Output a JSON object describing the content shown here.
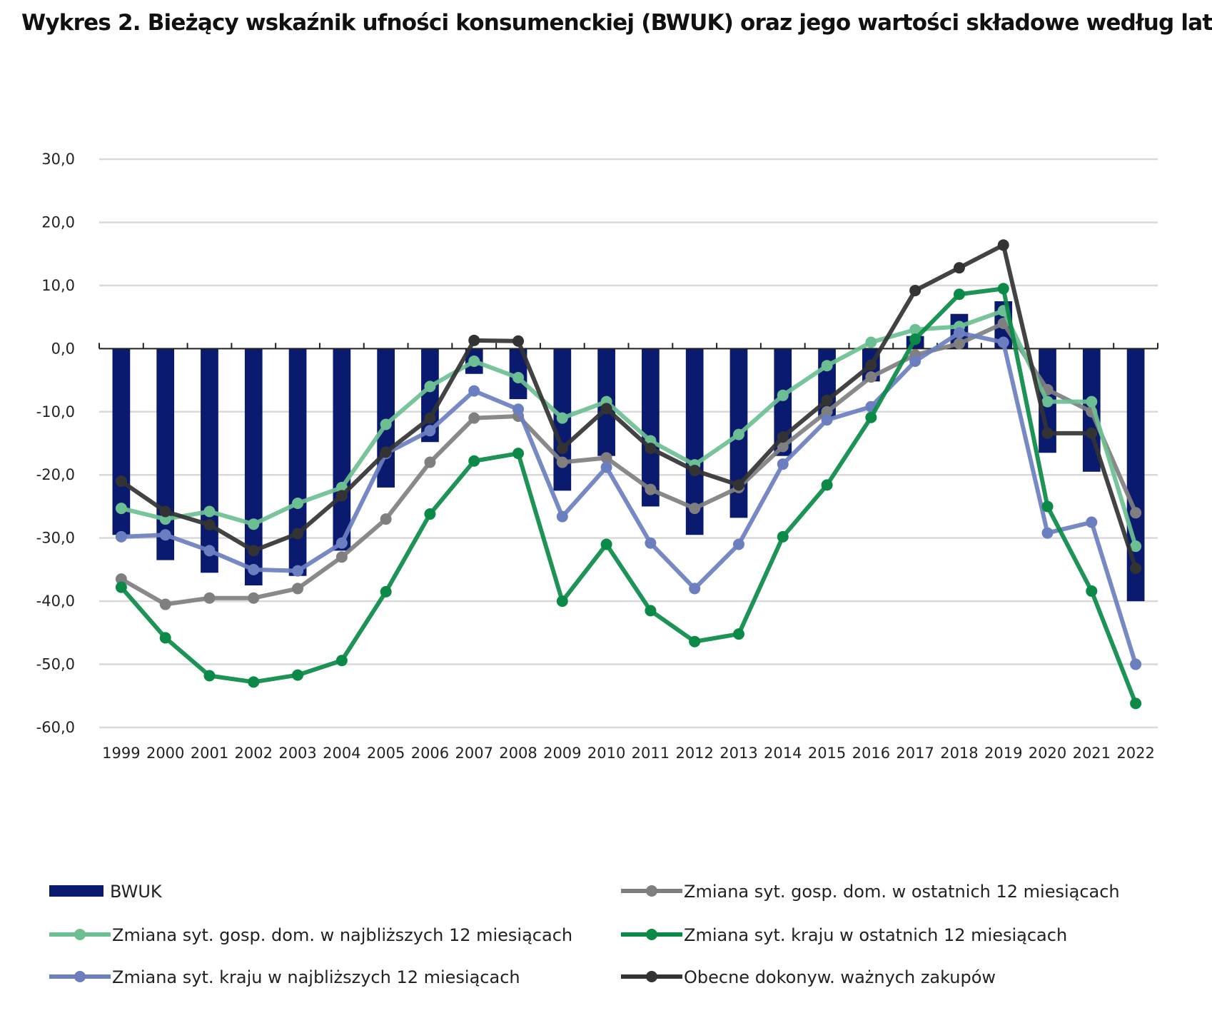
{
  "chart_data": {
    "type": "bar+line",
    "title": "Wykres 2. Bieżący wskaźnik ufności konsumenckiej (BWUK) oraz jego wartości składowe według lat",
    "categories": [
      "1999",
      "2000",
      "2001",
      "2002",
      "2003",
      "2004",
      "2005",
      "2006",
      "2007",
      "2008",
      "2009",
      "2010",
      "2011",
      "2012",
      "2013",
      "2014",
      "2015",
      "2016",
      "2017",
      "2018",
      "2019",
      "2020",
      "2021",
      "2022"
    ],
    "ylim": [
      -60,
      30
    ],
    "yticks": [
      "30,0",
      "20,0",
      "10,0",
      "0,0",
      "-10,0",
      "-20,0",
      "-30,0",
      "-40,0",
      "-50,0",
      "-60,0"
    ],
    "ytick_values": [
      30,
      20,
      10,
      0,
      -10,
      -20,
      -30,
      -40,
      -50,
      -60
    ],
    "grid": true,
    "legend_position": "bottom",
    "bars": {
      "name": "BWUK",
      "color": "#0a1a6e",
      "values": [
        -29.5,
        -33.5,
        -35.5,
        -37.5,
        -36,
        -32,
        -22,
        -14.8,
        -4,
        -8,
        -22.5,
        -17,
        -25,
        -29.5,
        -26.8,
        -17,
        -11,
        -5.2,
        2,
        5.5,
        7.5,
        -16.5,
        -19.5,
        -40
      ]
    },
    "series": [
      {
        "name": "Zmiana syt. gosp. dom. w ostatnich 12 miesiącach",
        "color": "#7f7f7f",
        "values": [
          -36.5,
          -40.5,
          -39.5,
          -39.5,
          -38,
          -33,
          -27,
          -18,
          -11,
          -10.7,
          -18,
          -17.3,
          -22.3,
          -25.3,
          -22,
          -15.5,
          -10,
          -4.5,
          -1,
          0.8,
          4,
          -6.5,
          -10,
          -26
        ]
      },
      {
        "name": "Zmiana syt. gosp. dom. w najbliższych 12 miesiącach",
        "color": "#6cbf93",
        "values": [
          -25.3,
          -27,
          -25.8,
          -27.8,
          -24.5,
          -22,
          -12,
          -6,
          -2,
          -4.6,
          -11,
          -8.4,
          -14.6,
          -18.4,
          -13.6,
          -7.4,
          -2.7,
          1,
          3,
          3.5,
          6,
          -8.4,
          -8.4,
          -31.3
        ]
      },
      {
        "name": "Zmiana syt. kraju w ostatnich 12 miesiącach",
        "color": "#0a8a46",
        "values": [
          -37.8,
          -45.8,
          -51.8,
          -52.8,
          -51.7,
          -49.4,
          -38.5,
          -26.2,
          -17.8,
          -16.6,
          -40,
          -31,
          -41.5,
          -46.4,
          -45.2,
          -29.8,
          -21.6,
          -10.9,
          1.5,
          8.6,
          9.5,
          -25,
          -38.4,
          -56.2
        ]
      },
      {
        "name": "Zmiana syt. kraju w najbliższych 12 miesiącach",
        "color": "#6b7fc0",
        "values": [
          -29.8,
          -29.5,
          -32,
          -35,
          -35.2,
          -30.8,
          -16.6,
          -13,
          -6.7,
          -9.6,
          -26.6,
          -18.8,
          -30.8,
          -38,
          -31,
          -18.3,
          -11.3,
          -9.2,
          -2,
          2.5,
          1,
          -29.2,
          -27.5,
          -50
        ]
      },
      {
        "name": "Obecne dokonyw. ważnych zakupów",
        "color": "#333333",
        "values": [
          -21,
          -25.8,
          -27.9,
          -32,
          -29.3,
          -23.3,
          -16.4,
          -11,
          1.3,
          1.2,
          -15.8,
          -9.5,
          -15.8,
          -19.3,
          -21.6,
          -14,
          -8.2,
          -2.6,
          9.2,
          12.8,
          16.4,
          -13.4,
          -13.4,
          -34.8
        ]
      }
    ],
    "draw_order": [
      0,
      1,
      3,
      2,
      4
    ],
    "legend_layout": [
      [
        -1,
        0
      ],
      [
        1,
        2
      ],
      [
        3,
        4
      ]
    ]
  }
}
